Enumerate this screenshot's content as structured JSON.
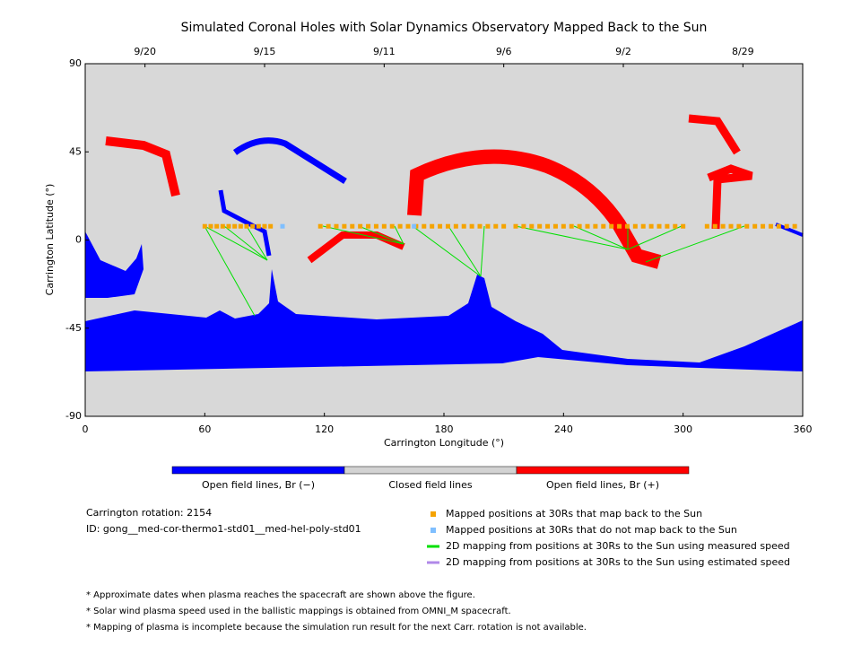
{
  "chart_data": {
    "type": "scatter",
    "title": "Simulated Coronal Holes with Solar Dynamics Observatory Mapped Back to the Sun",
    "xlabel": "Carrington Longitude (°)",
    "ylabel": "Carrington Latitude (°)",
    "xlim": [
      0,
      360
    ],
    "ylim": [
      -90,
      90
    ],
    "xticks": [
      0,
      60,
      120,
      180,
      240,
      300,
      360
    ],
    "yticks": [
      -90,
      -45,
      0,
      45,
      90
    ],
    "top_ticks": [
      {
        "value": 30,
        "label": "9/20"
      },
      {
        "value": 90,
        "label": "9/15"
      },
      {
        "value": 150,
        "label": "9/11"
      },
      {
        "value": 210,
        "label": "9/6"
      },
      {
        "value": 270,
        "label": "9/2"
      },
      {
        "value": 330,
        "label": "8/29"
      }
    ],
    "series": [
      {
        "name": "Mapped positions at 30Rs that map back to the Sun",
        "color": "#f5a300",
        "x": [
          60,
          63,
          66,
          69,
          72,
          75,
          78,
          81,
          84,
          87,
          90,
          93,
          118,
          122,
          126,
          130,
          134,
          138,
          142,
          146,
          150,
          154,
          158,
          162,
          166,
          170,
          174,
          178,
          182,
          186,
          190,
          194,
          198,
          202,
          206,
          210,
          216,
          220,
          224,
          228,
          232,
          236,
          240,
          244,
          248,
          252,
          256,
          260,
          264,
          268,
          272,
          276,
          280,
          284,
          288,
          292,
          296,
          300,
          312,
          316,
          320,
          324,
          328,
          332,
          336,
          340,
          344,
          348,
          352,
          356
        ],
        "values": [
          7,
          7,
          7,
          7,
          7,
          7,
          7,
          7,
          7,
          7,
          7,
          7,
          7,
          7,
          7,
          7,
          7,
          7,
          7,
          7,
          7,
          7,
          7,
          7,
          7,
          7,
          7,
          7,
          7,
          7,
          7,
          7,
          7,
          7,
          7,
          7,
          7,
          7,
          7,
          7,
          7,
          7,
          7,
          7,
          7,
          7,
          7,
          7,
          7,
          7,
          7,
          7,
          7,
          7,
          7,
          7,
          7,
          7,
          7,
          7,
          7,
          7,
          7,
          7,
          7,
          7,
          7,
          7,
          7,
          7
        ]
      },
      {
        "name": "Mapped positions at 30Rs that do not map back to the Sun",
        "color": "#7fbfff",
        "x": [
          99,
          165
        ],
        "values": [
          7,
          7
        ]
      }
    ],
    "line_legend": [
      {
        "name": "2D mapping from positions at 30Rs to the Sun using measured speed",
        "color": "#00e000"
      },
      {
        "name": "2D mapping from positions at 30Rs to the Sun using estimated speed",
        "color": "#b088e8"
      }
    ],
    "colorbar": [
      {
        "label": "Open field lines, Br (−)",
        "color": "#0000ff"
      },
      {
        "label": "Closed field lines",
        "color": "#d3d3d3"
      },
      {
        "label": "Open field lines, Br (+)",
        "color": "#ff0000"
      }
    ],
    "info": [
      "Carrington rotation: 2154",
      "ID: gong__med-cor-thermo1-std01__med-hel-poly-std01"
    ],
    "notes": [
      "* Approximate dates when plasma reaches the spacecraft are shown above the figure.",
      "* Solar wind plasma speed used in the ballistic mappings is obtained from OMNI_M spacecraft.",
      "* Mapping of plasma is incomplete because the simulation run result for the next Carr. rotation is not available."
    ]
  }
}
